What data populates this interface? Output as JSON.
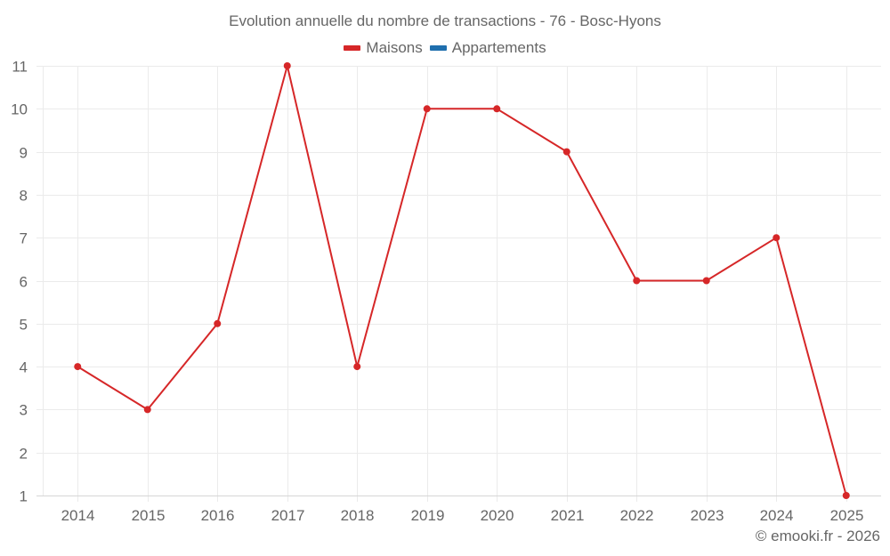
{
  "title": "Evolution annuelle du nombre de transactions - 76 - Bosc-Hyons",
  "legend": [
    {
      "label": "Maisons",
      "color": "#d62728"
    },
    {
      "label": "Appartements",
      "color": "#1f6fae"
    }
  ],
  "credit": "© emooki.fr - 2026",
  "colors": {
    "grid": "#ebebeb",
    "axis": "#d6d6d6",
    "text": "#666666",
    "series": "#d62728"
  },
  "chart_data": {
    "type": "line",
    "title": "Evolution annuelle du nombre de transactions - 76 - Bosc-Hyons",
    "xlabel": "",
    "ylabel": "",
    "categories": [
      "2014",
      "2015",
      "2016",
      "2017",
      "2018",
      "2019",
      "2020",
      "2021",
      "2022",
      "2023",
      "2024",
      "2025"
    ],
    "series": [
      {
        "name": "Maisons",
        "color": "#d62728",
        "values": [
          4,
          3,
          5,
          11,
          4,
          10,
          10,
          9,
          6,
          6,
          7,
          1
        ]
      },
      {
        "name": "Appartements",
        "color": "#1f6fae",
        "values": []
      }
    ],
    "ylim": [
      1,
      11
    ],
    "yticks": [
      1,
      2,
      3,
      4,
      5,
      6,
      7,
      8,
      9,
      10,
      11
    ],
    "grid": true,
    "legend_position": "top"
  }
}
